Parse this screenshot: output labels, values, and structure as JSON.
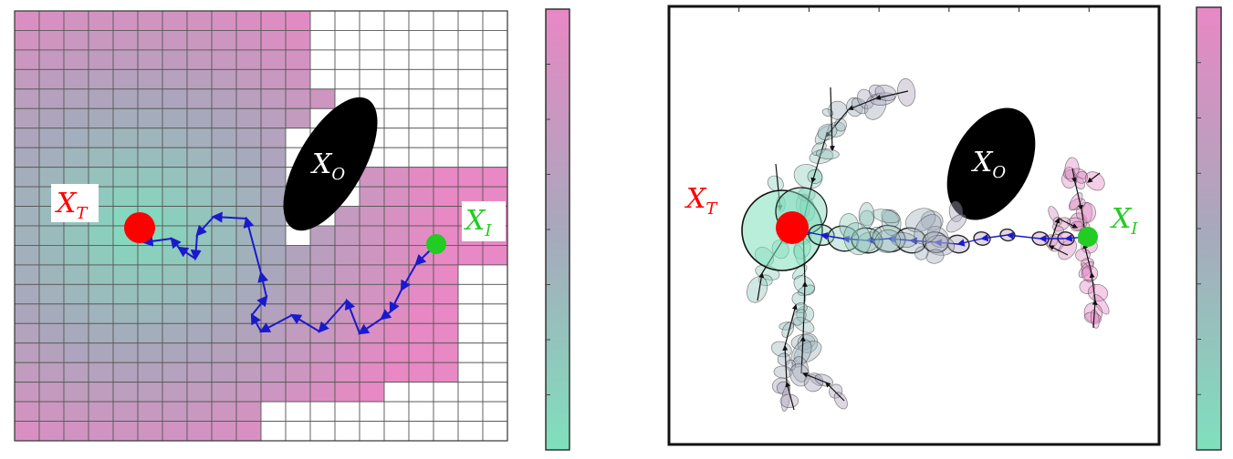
{
  "labels": {
    "target": {
      "letter": "X",
      "sub": "T"
    },
    "obstacle": {
      "letter": "X",
      "sub": "O"
    },
    "initial": {
      "letter": "X",
      "sub": "I"
    }
  },
  "colors": {
    "target_red": "#ff0000",
    "initial_green": "#22cc22",
    "path_blue": "#1a1acc",
    "obstacle_black": "#000000",
    "low_teal": "#7fe0bd",
    "mid_grey": "#a8a8bc",
    "high_pink": "#e888c4",
    "cell_border": "#555555"
  },
  "panels": [
    {
      "name": "grid-panel"
    },
    {
      "name": "tree-panel"
    }
  ],
  "colorbars": [
    {
      "name": "left-colorbar",
      "from": "#7fe0bd",
      "to": "#e888c4"
    },
    {
      "name": "right-colorbar",
      "from": "#7fe0bd",
      "to": "#e888c4"
    }
  ]
}
